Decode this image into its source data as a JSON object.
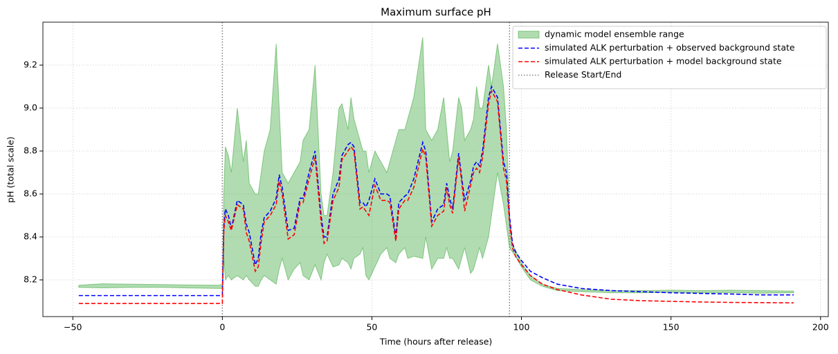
{
  "chart_data": {
    "type": "line",
    "title": "Maximum surface pH",
    "xlabel": "Time (hours after release)",
    "ylabel": "pH (total scale)",
    "xlim": [
      -60,
      202.6
    ],
    "ylim": [
      8.029,
      9.4
    ],
    "xticks": [
      {
        "value": -50,
        "label": "−50"
      },
      0,
      50,
      100,
      150,
      200
    ],
    "yticks": [
      8.2,
      8.4,
      8.6,
      8.8,
      {
        "value": 9,
        "label": "9.0"
      },
      9.2
    ],
    "grid": true,
    "legend": "upper right",
    "x": [
      -48,
      -40,
      -30,
      -20,
      -10,
      -1,
      0,
      0.5,
      1,
      2,
      3,
      5,
      7,
      8,
      9,
      11,
      12,
      13,
      14,
      16,
      18,
      19,
      20,
      22,
      24,
      26,
      27,
      29,
      31,
      33,
      34,
      35,
      37,
      39,
      40,
      42,
      43,
      44,
      46,
      47,
      48,
      49,
      51,
      53,
      55,
      56,
      58,
      59,
      61,
      62,
      64,
      67,
      68,
      70,
      72,
      74,
      75,
      76,
      77,
      79,
      80,
      81,
      83,
      84,
      85,
      86,
      87,
      89,
      90,
      92,
      94,
      95,
      96,
      97,
      98,
      100,
      103,
      107,
      112,
      120,
      130,
      140,
      150,
      160,
      170,
      180,
      191
    ],
    "band": {
      "name": "dynamic model ensemble range",
      "color": "#2ca02c",
      "upper": [
        8.175,
        8.182,
        8.18,
        8.178,
        8.176,
        8.175,
        8.18,
        8.6,
        8.82,
        8.78,
        8.7,
        9.0,
        8.75,
        8.85,
        8.65,
        8.6,
        8.6,
        8.7,
        8.8,
        8.9,
        9.3,
        9.0,
        8.7,
        8.65,
        8.7,
        8.75,
        8.85,
        8.9,
        9.2,
        8.6,
        8.5,
        8.5,
        8.7,
        9.0,
        9.02,
        8.9,
        9.05,
        8.95,
        8.85,
        8.8,
        8.8,
        8.7,
        8.8,
        8.75,
        8.7,
        8.75,
        8.85,
        8.9,
        8.9,
        8.95,
        9.05,
        9.33,
        8.9,
        8.85,
        8.9,
        9.05,
        8.9,
        8.75,
        8.8,
        9.05,
        9.0,
        8.85,
        8.9,
        8.95,
        9.1,
        9.0,
        9.0,
        9.2,
        9.1,
        9.3,
        9.1,
        8.9,
        8.5,
        8.36,
        8.34,
        8.28,
        8.22,
        8.18,
        8.16,
        8.155,
        8.15,
        8.15,
        8.152,
        8.15,
        8.152,
        8.15,
        8.148
      ],
      "lower": [
        8.165,
        8.163,
        8.165,
        8.165,
        8.162,
        8.16,
        8.16,
        8.3,
        8.2,
        8.22,
        8.2,
        8.22,
        8.2,
        8.22,
        8.2,
        8.17,
        8.17,
        8.2,
        8.22,
        8.2,
        8.18,
        8.25,
        8.3,
        8.2,
        8.25,
        8.28,
        8.22,
        8.2,
        8.27,
        8.2,
        8.28,
        8.32,
        8.26,
        8.27,
        8.3,
        8.28,
        8.25,
        8.3,
        8.32,
        8.35,
        8.22,
        8.2,
        8.26,
        8.32,
        8.35,
        8.3,
        8.28,
        8.32,
        8.35,
        8.3,
        8.31,
        8.3,
        8.4,
        8.25,
        8.3,
        8.3,
        8.35,
        8.3,
        8.3,
        8.25,
        8.3,
        8.35,
        8.23,
        8.25,
        8.3,
        8.35,
        8.3,
        8.4,
        8.5,
        8.7,
        8.55,
        8.45,
        8.35,
        8.33,
        8.31,
        8.26,
        8.2,
        8.17,
        8.15,
        8.145,
        8.14,
        8.14,
        8.142,
        8.14,
        8.14,
        8.138,
        8.14
      ]
    },
    "series": [
      {
        "name": "simulated ALK perturbation + observed background state",
        "color": "#0000ff",
        "values": [
          8.127,
          8.127,
          8.127,
          8.127,
          8.127,
          8.127,
          8.127,
          8.45,
          8.53,
          8.5,
          8.44,
          8.57,
          8.55,
          8.46,
          8.42,
          8.27,
          8.3,
          8.42,
          8.49,
          8.52,
          8.58,
          8.69,
          8.63,
          8.43,
          8.44,
          8.58,
          8.58,
          8.7,
          8.8,
          8.5,
          8.4,
          8.4,
          8.6,
          8.67,
          8.78,
          8.83,
          8.84,
          8.82,
          8.56,
          8.56,
          8.54,
          8.57,
          8.67,
          8.6,
          8.6,
          8.59,
          8.4,
          8.56,
          8.59,
          8.6,
          8.67,
          8.84,
          8.8,
          8.47,
          8.53,
          8.55,
          8.65,
          8.58,
          8.53,
          8.79,
          8.68,
          8.57,
          8.66,
          8.73,
          8.75,
          8.73,
          8.8,
          9.05,
          9.1,
          9.05,
          8.75,
          8.7,
          8.5,
          8.37,
          8.33,
          8.29,
          8.24,
          8.21,
          8.18,
          8.16,
          8.15,
          8.145,
          8.14,
          8.137,
          8.134,
          8.13,
          8.13
        ]
      },
      {
        "name": "simulated ALK perturbation + model background state",
        "color": "#ff0000",
        "values": [
          8.09,
          8.09,
          8.09,
          8.09,
          8.09,
          8.09,
          8.09,
          8.43,
          8.5,
          8.47,
          8.43,
          8.55,
          8.53,
          8.42,
          8.38,
          8.24,
          8.26,
          8.38,
          8.47,
          8.5,
          8.55,
          8.66,
          8.6,
          8.39,
          8.41,
          8.56,
          8.56,
          8.67,
          8.77,
          8.47,
          8.37,
          8.38,
          8.57,
          8.63,
          8.76,
          8.8,
          8.82,
          8.8,
          8.53,
          8.54,
          8.52,
          8.5,
          8.64,
          8.57,
          8.57,
          8.56,
          8.38,
          8.53,
          8.57,
          8.57,
          8.63,
          8.81,
          8.77,
          8.45,
          8.5,
          8.52,
          8.63,
          8.55,
          8.51,
          8.77,
          8.66,
          8.52,
          8.64,
          8.7,
          8.72,
          8.7,
          8.77,
          9.02,
          9.08,
          9.03,
          8.72,
          8.66,
          8.47,
          8.35,
          8.31,
          8.27,
          8.22,
          8.18,
          8.155,
          8.13,
          8.11,
          8.103,
          8.1,
          8.097,
          8.095,
          8.094,
          8.093
        ]
      }
    ],
    "vlines": {
      "name": "Release Start/End",
      "color": "#808080",
      "values": [
        0,
        96
      ]
    }
  }
}
